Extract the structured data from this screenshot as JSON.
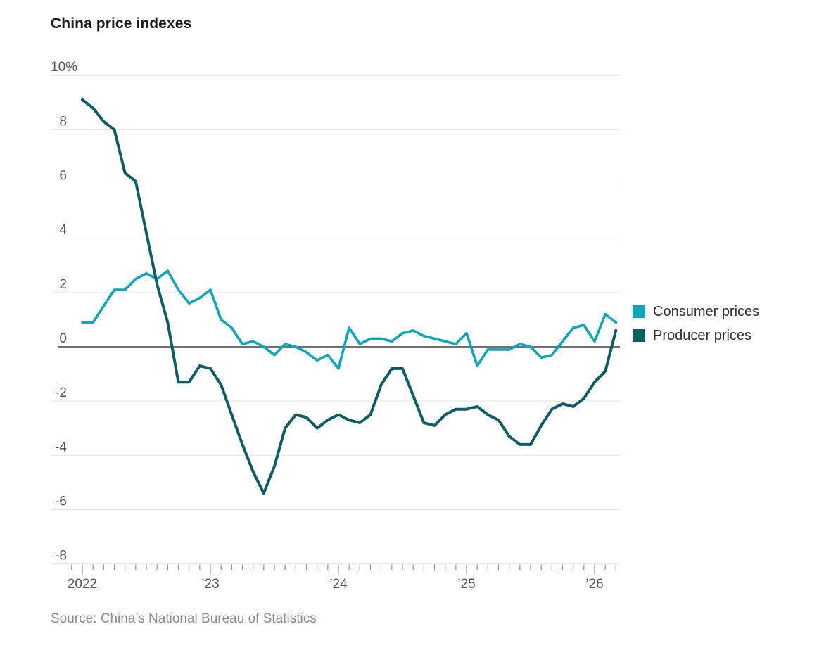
{
  "header": {
    "title": "China price indexes"
  },
  "legend": {
    "items": [
      {
        "label": "Consumer prices",
        "color": "#0ea5bd"
      },
      {
        "label": "Producer prices",
        "color": "#0e5d66"
      }
    ]
  },
  "source": {
    "text": "Source: China’s National Bureau of Statistics"
  },
  "colors": {
    "consumer": "#0ea5bd",
    "producer": "#0e5d66",
    "grid": "#e4e4e4",
    "zero_line": "#404040",
    "tick": "#8f8f8f",
    "axis_text": "#555555",
    "title_text": "#1b1b1b",
    "legend_text": "#303030",
    "source_text": "#8a8a8a"
  },
  "chart_data": {
    "type": "line",
    "title": "China price indexes",
    "xlabel": "",
    "ylabel": "",
    "ylim": [
      -8,
      10
    ],
    "grid": true,
    "zero_line": true,
    "legend_position": "right",
    "y_ticks": [
      {
        "value": 10,
        "label": "10%"
      },
      {
        "value": 8,
        "label": "8"
      },
      {
        "value": 6,
        "label": "6"
      },
      {
        "value": 4,
        "label": "4"
      },
      {
        "value": 2,
        "label": "2"
      },
      {
        "value": 0,
        "label": "0"
      },
      {
        "value": -2,
        "label": "-2"
      },
      {
        "value": -4,
        "label": "-4"
      },
      {
        "value": -6,
        "label": "-6"
      },
      {
        "value": -8,
        "label": "-8"
      }
    ],
    "x_axis": {
      "minor_ticks_monthly": true,
      "leading_minor_ticks": 1,
      "year_labels": [
        {
          "label": "2022",
          "month_index": 0
        },
        {
          "label": "’23",
          "month_index": 12
        },
        {
          "label": "’24",
          "month_index": 24
        },
        {
          "label": "’25",
          "month_index": 36
        },
        {
          "label": "’26",
          "month_index": 48
        }
      ]
    },
    "x": [
      "2022-01",
      "2022-02",
      "2022-03",
      "2022-04",
      "2022-05",
      "2022-06",
      "2022-07",
      "2022-08",
      "2022-09",
      "2022-10",
      "2022-11",
      "2022-12",
      "2023-01",
      "2023-02",
      "2023-03",
      "2023-04",
      "2023-05",
      "2023-06",
      "2023-07",
      "2023-08",
      "2023-09",
      "2023-10",
      "2023-11",
      "2023-12",
      "2024-01",
      "2024-02",
      "2024-03",
      "2024-04",
      "2024-05",
      "2024-06",
      "2024-07",
      "2024-08",
      "2024-09",
      "2024-10",
      "2024-11",
      "2024-12",
      "2025-01",
      "2025-02",
      "2025-03",
      "2025-04",
      "2025-05",
      "2025-06",
      "2025-07",
      "2025-08",
      "2025-09",
      "2025-10",
      "2025-11",
      "2025-12",
      "2026-01",
      "2026-02",
      "2026-03"
    ],
    "series": [
      {
        "name": "Consumer prices",
        "color": "#0ea5bd",
        "values": [
          0.9,
          0.9,
          1.5,
          2.1,
          2.1,
          2.5,
          2.7,
          2.5,
          2.8,
          2.1,
          1.6,
          1.8,
          2.1,
          1.0,
          0.7,
          0.1,
          0.2,
          0.0,
          -0.3,
          0.1,
          0.0,
          -0.2,
          -0.5,
          -0.3,
          -0.8,
          0.7,
          0.1,
          0.3,
          0.3,
          0.2,
          0.5,
          0.6,
          0.4,
          0.3,
          0.2,
          0.1,
          0.5,
          -0.7,
          -0.1,
          -0.1,
          -0.1,
          0.1,
          0.0,
          -0.4,
          -0.3,
          0.2,
          0.7,
          0.8,
          0.2,
          1.2,
          0.9
        ]
      },
      {
        "name": "Producer prices",
        "color": "#0e5d66",
        "values": [
          9.1,
          8.8,
          8.3,
          8.0,
          6.4,
          6.1,
          4.2,
          2.3,
          0.9,
          -1.3,
          -1.3,
          -0.7,
          -0.8,
          -1.4,
          -2.5,
          -3.6,
          -4.6,
          -5.4,
          -4.4,
          -3.0,
          -2.5,
          -2.6,
          -3.0,
          -2.7,
          -2.5,
          -2.7,
          -2.8,
          -2.5,
          -1.4,
          -0.8,
          -0.8,
          -1.8,
          -2.8,
          -2.9,
          -2.5,
          -2.3,
          -2.3,
          -2.2,
          -2.5,
          -2.7,
          -3.3,
          -3.6,
          -3.6,
          -2.9,
          -2.3,
          -2.1,
          -2.2,
          -1.9,
          -1.3,
          -0.9,
          0.6
        ]
      }
    ]
  }
}
